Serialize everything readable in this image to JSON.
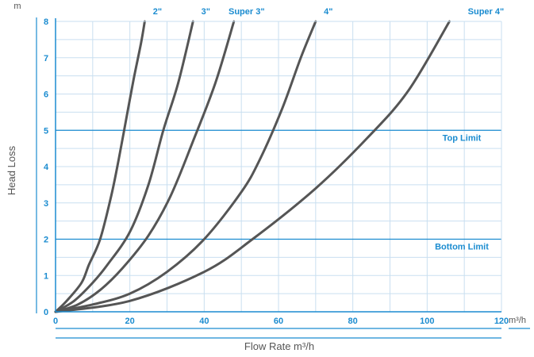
{
  "chart_data": {
    "type": "line",
    "xlabel": "Flow Rate m³/h",
    "ylabel": "Head Loss",
    "x_unit": "m³/h",
    "y_unit": "m",
    "xlim": [
      0,
      120
    ],
    "ylim": [
      0,
      8
    ],
    "x_ticks": [
      "0",
      "20",
      "40",
      "60",
      "80",
      "100",
      "120"
    ],
    "y_ticks": [
      "0",
      "1",
      "2",
      "3",
      "4",
      "5",
      "6",
      "7",
      "8"
    ],
    "grid": true,
    "series": [
      {
        "name": "2\"",
        "points": [
          [
            0,
            0
          ],
          [
            3,
            0.3
          ],
          [
            7,
            0.8
          ],
          [
            9,
            1.3
          ],
          [
            12,
            2.0
          ],
          [
            15,
            3.2
          ],
          [
            17,
            4.2
          ],
          [
            19,
            5.3
          ],
          [
            21,
            6.4
          ],
          [
            23,
            7.4
          ],
          [
            24,
            8
          ]
        ]
      },
      {
        "name": "3\"",
        "points": [
          [
            0,
            0
          ],
          [
            5,
            0.3
          ],
          [
            10,
            0.8
          ],
          [
            14,
            1.3
          ],
          [
            20,
            2.2
          ],
          [
            25,
            3.5
          ],
          [
            29,
            5.0
          ],
          [
            33,
            6.3
          ],
          [
            37,
            8
          ]
        ]
      },
      {
        "name": "Super 3\"",
        "points": [
          [
            0,
            0
          ],
          [
            6,
            0.2
          ],
          [
            12,
            0.6
          ],
          [
            18,
            1.2
          ],
          [
            25,
            2.1
          ],
          [
            31,
            3.2
          ],
          [
            37,
            4.7
          ],
          [
            43,
            6.3
          ],
          [
            48,
            8
          ]
        ]
      },
      {
        "name": "4\"",
        "points": [
          [
            0,
            0
          ],
          [
            10,
            0.2
          ],
          [
            20,
            0.5
          ],
          [
            30,
            1.1
          ],
          [
            40,
            2.0
          ],
          [
            50,
            3.3
          ],
          [
            55,
            4.2
          ],
          [
            61,
            5.6
          ],
          [
            66,
            7.0
          ],
          [
            70,
            8
          ]
        ]
      },
      {
        "name": "Super 4\"",
        "points": [
          [
            0,
            0
          ],
          [
            20,
            0.3
          ],
          [
            40,
            1.1
          ],
          [
            53,
            2.0
          ],
          [
            70,
            3.4
          ],
          [
            84,
            4.8
          ],
          [
            95,
            6.1
          ],
          [
            106,
            8
          ]
        ]
      }
    ],
    "reference_lines": [
      {
        "label": "Top Limit",
        "y": 5
      },
      {
        "label": "Bottom Limit",
        "y": 2
      }
    ],
    "colors": {
      "series": "#555555",
      "accent": "#1b8cd0",
      "grid": "#c9dff0",
      "text": "#555555"
    }
  }
}
